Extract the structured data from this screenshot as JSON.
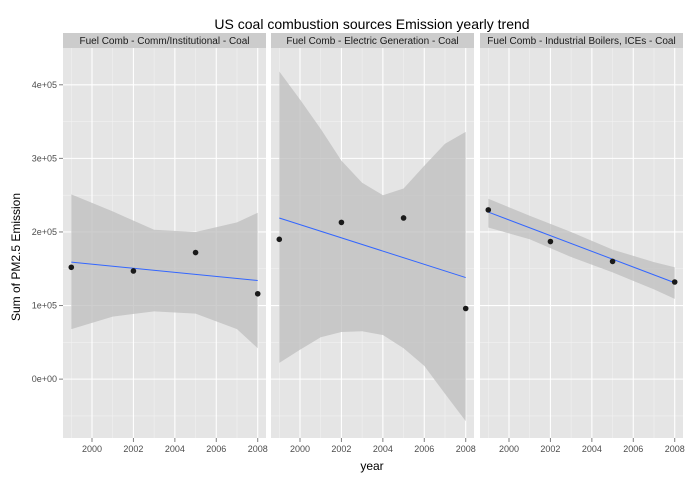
{
  "chart_data": {
    "type": "scatter",
    "title": "US coal combustion sources Emission yearly trend",
    "xlabel": "year",
    "ylabel": "Sum of PM2.5 Emission",
    "xlim": [
      1998.6,
      2008.4
    ],
    "ylim": [
      -80000,
      450000
    ],
    "x_ticks": [
      2000,
      2002,
      2004,
      2006,
      2008
    ],
    "x_tick_labels": [
      "2000",
      "2002",
      "2004",
      "2006",
      "2008"
    ],
    "y_ticks": [
      0,
      100000,
      200000,
      300000,
      400000
    ],
    "y_tick_labels": [
      "0e+00",
      "1e+05",
      "2e+05",
      "3e+05",
      "4e+05"
    ],
    "grid": true,
    "panels": [
      {
        "label": "Fuel Comb - Comm/Institutional - Coal",
        "x": [
          1999,
          2002,
          2005,
          2008
        ],
        "y": [
          152000,
          147000,
          172000,
          116000
        ],
        "fit": {
          "x": [
            1999,
            2008
          ],
          "y": [
            159000,
            134000
          ]
        },
        "ci_lower": [
          {
            "x": 1999,
            "y": 68000
          },
          {
            "x": 2001,
            "y": 85000
          },
          {
            "x": 2003,
            "y": 92000
          },
          {
            "x": 2005,
            "y": 89000
          },
          {
            "x": 2007,
            "y": 68000
          },
          {
            "x": 2008,
            "y": 42000
          }
        ],
        "ci_upper": [
          {
            "x": 1999,
            "y": 251000
          },
          {
            "x": 2001,
            "y": 228000
          },
          {
            "x": 2003,
            "y": 203000
          },
          {
            "x": 2005,
            "y": 200000
          },
          {
            "x": 2007,
            "y": 213000
          },
          {
            "x": 2008,
            "y": 226000
          }
        ]
      },
      {
        "label": "Fuel Comb - Electric Generation - Coal",
        "x": [
          1999,
          2002,
          2005,
          2008
        ],
        "y": [
          190000,
          213000,
          219000,
          96000
        ],
        "fit": {
          "x": [
            1999,
            2008
          ],
          "y": [
            219000,
            138000
          ]
        },
        "ci_lower": [
          {
            "x": 1999,
            "y": 22000
          },
          {
            "x": 2000,
            "y": 40000
          },
          {
            "x": 2001,
            "y": 57000
          },
          {
            "x": 2002,
            "y": 64000
          },
          {
            "x": 2003,
            "y": 65000
          },
          {
            "x": 2004,
            "y": 60000
          },
          {
            "x": 2005,
            "y": 42000
          },
          {
            "x": 2006,
            "y": 18000
          },
          {
            "x": 2007,
            "y": -20000
          },
          {
            "x": 2008,
            "y": -57000
          }
        ],
        "ci_upper": [
          {
            "x": 1999,
            "y": 418000
          },
          {
            "x": 2000,
            "y": 380000
          },
          {
            "x": 2001,
            "y": 340000
          },
          {
            "x": 2002,
            "y": 297000
          },
          {
            "x": 2003,
            "y": 267000
          },
          {
            "x": 2004,
            "y": 250000
          },
          {
            "x": 2005,
            "y": 259000
          },
          {
            "x": 2006,
            "y": 290000
          },
          {
            "x": 2007,
            "y": 320000
          },
          {
            "x": 2008,
            "y": 336000
          }
        ]
      },
      {
        "label": "Fuel Comb - Industrial Boilers, ICEs - Coal",
        "x": [
          1999,
          2002,
          2005,
          2008
        ],
        "y": [
          230000,
          187000,
          160000,
          132000
        ],
        "fit": {
          "x": [
            1999,
            2008
          ],
          "y": [
            227000,
            131000
          ]
        },
        "ci_lower": [
          {
            "x": 1999,
            "y": 206000
          },
          {
            "x": 2001,
            "y": 190000
          },
          {
            "x": 2003,
            "y": 166000
          },
          {
            "x": 2005,
            "y": 145000
          },
          {
            "x": 2007,
            "y": 122000
          },
          {
            "x": 2008,
            "y": 109000
          }
        ],
        "ci_upper": [
          {
            "x": 1999,
            "y": 245000
          },
          {
            "x": 2001,
            "y": 222000
          },
          {
            "x": 2003,
            "y": 200000
          },
          {
            "x": 2005,
            "y": 176000
          },
          {
            "x": 2007,
            "y": 159000
          },
          {
            "x": 2008,
            "y": 152000
          }
        ]
      }
    ],
    "colors": {
      "panel_bg": "#e5e5e5",
      "grid_major": "#ffffff",
      "grid_minor": "#f2f2f2",
      "strip_bg": "#cccccc",
      "point": "#1a1a1a",
      "fit_line": "#3366ff",
      "ribbon": "#bdbdbd"
    }
  }
}
